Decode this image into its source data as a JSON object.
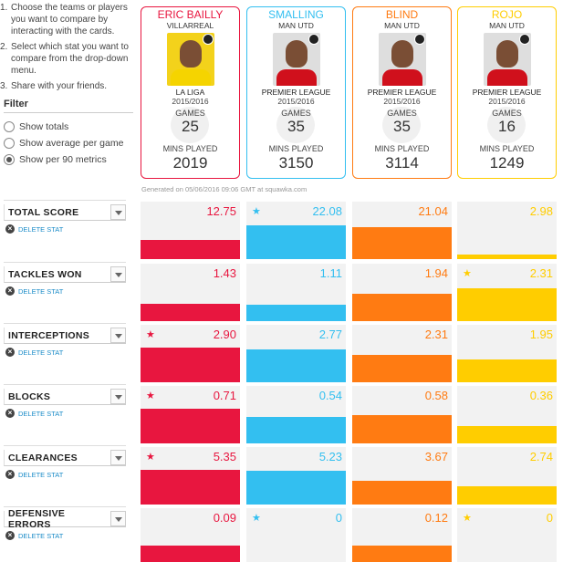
{
  "instructions": [
    {
      "num": "1.",
      "text": "Choose the teams or players you want to compare by interacting with the cards."
    },
    {
      "num": "2.",
      "text": "Select which stat you want to compare from the drop-down menu."
    },
    {
      "num": "3.",
      "text": "Share with your friends."
    }
  ],
  "filter": {
    "title": "Filter",
    "options": [
      {
        "label": "Show totals",
        "checked": false
      },
      {
        "label": "Show average per game",
        "checked": false
      },
      {
        "label": "Show per 90 metrics",
        "checked": true
      }
    ]
  },
  "colors": {
    "bailly": "#e8163f",
    "smalling": "#33bff0",
    "blind": "#ff7b12",
    "rojo": "#ffcd00"
  },
  "players": [
    {
      "name": "ERIC BAILLY",
      "team": "VILLARREAL",
      "league": "LA LIGA",
      "season": "2015/2016",
      "games_label": "GAMES",
      "games": "25",
      "mins_label": "MINS PLAYED",
      "mins": "2019",
      "color": "#e8163f",
      "shirt": "#f5d400",
      "photo_bg": "#f3d21b"
    },
    {
      "name": "SMALLING",
      "team": "MAN UTD",
      "league": "PREMIER LEAGUE",
      "season": "2015/2016",
      "games_label": "GAMES",
      "games": "35",
      "mins_label": "MINS PLAYED",
      "mins": "3150",
      "color": "#33bff0",
      "shirt": "#d0101c",
      "photo_bg": "#dedede"
    },
    {
      "name": "BLIND",
      "team": "MAN UTD",
      "league": "PREMIER LEAGUE",
      "season": "2015/2016",
      "games_label": "GAMES",
      "games": "35",
      "mins_label": "MINS PLAYED",
      "mins": "3114",
      "color": "#ff7b12",
      "shirt": "#d0101c",
      "photo_bg": "#dedede"
    },
    {
      "name": "ROJO",
      "team": "MAN UTD",
      "league": "PREMIER LEAGUE",
      "season": "2015/2016",
      "games_label": "GAMES",
      "games": "16",
      "mins_label": "MINS PLAYED",
      "mins": "1249",
      "color": "#ffcd00",
      "shirt": "#d0101c",
      "photo_bg": "#dedede"
    }
  ],
  "generated": "Generated on 05/06/2016 09:06 GMT at squawka.com",
  "delete_label": "DELETE STAT",
  "stats": [
    {
      "label": "TOTAL SCORE",
      "values": [
        "12.75",
        "22.08",
        "21.04",
        "2.98"
      ],
      "fractions": [
        0.34,
        0.59,
        0.56,
        0.08
      ],
      "star": 1
    },
    {
      "label": "TACKLES WON",
      "values": [
        "1.43",
        "1.11",
        "1.94",
        "2.31"
      ],
      "fractions": [
        0.3,
        0.29,
        0.47,
        0.57
      ],
      "star": 3
    },
    {
      "label": "INTERCEPTIONS",
      "values": [
        "2.90",
        "2.77",
        "2.31",
        "1.95"
      ],
      "fractions": [
        0.6,
        0.57,
        0.47,
        0.4
      ],
      "star": 0
    },
    {
      "label": "BLOCKS",
      "values": [
        "0.71",
        "0.54",
        "0.58",
        "0.36"
      ],
      "fractions": [
        0.6,
        0.46,
        0.49,
        0.3
      ],
      "star": 0
    },
    {
      "label": "CLEARANCES",
      "values": [
        "5.35",
        "5.23",
        "3.67",
        "2.74"
      ],
      "fractions": [
        0.6,
        0.59,
        0.41,
        0.31
      ],
      "star": 0
    },
    {
      "label": "DEFENSIVE ERRORS",
      "values": [
        "0.09",
        "0",
        "0.12",
        "0"
      ],
      "fractions": [
        0.35,
        0,
        0.35,
        0
      ],
      "star_multi": [
        1,
        3
      ]
    }
  ]
}
